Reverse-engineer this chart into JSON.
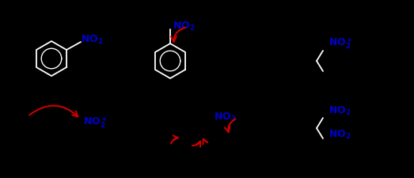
{
  "bg_color": "#000000",
  "fig_width": 5.23,
  "fig_height": 2.26,
  "dpi": 100,
  "white": "#ffffff",
  "blue": "#0000cc",
  "red": "#cc0000"
}
